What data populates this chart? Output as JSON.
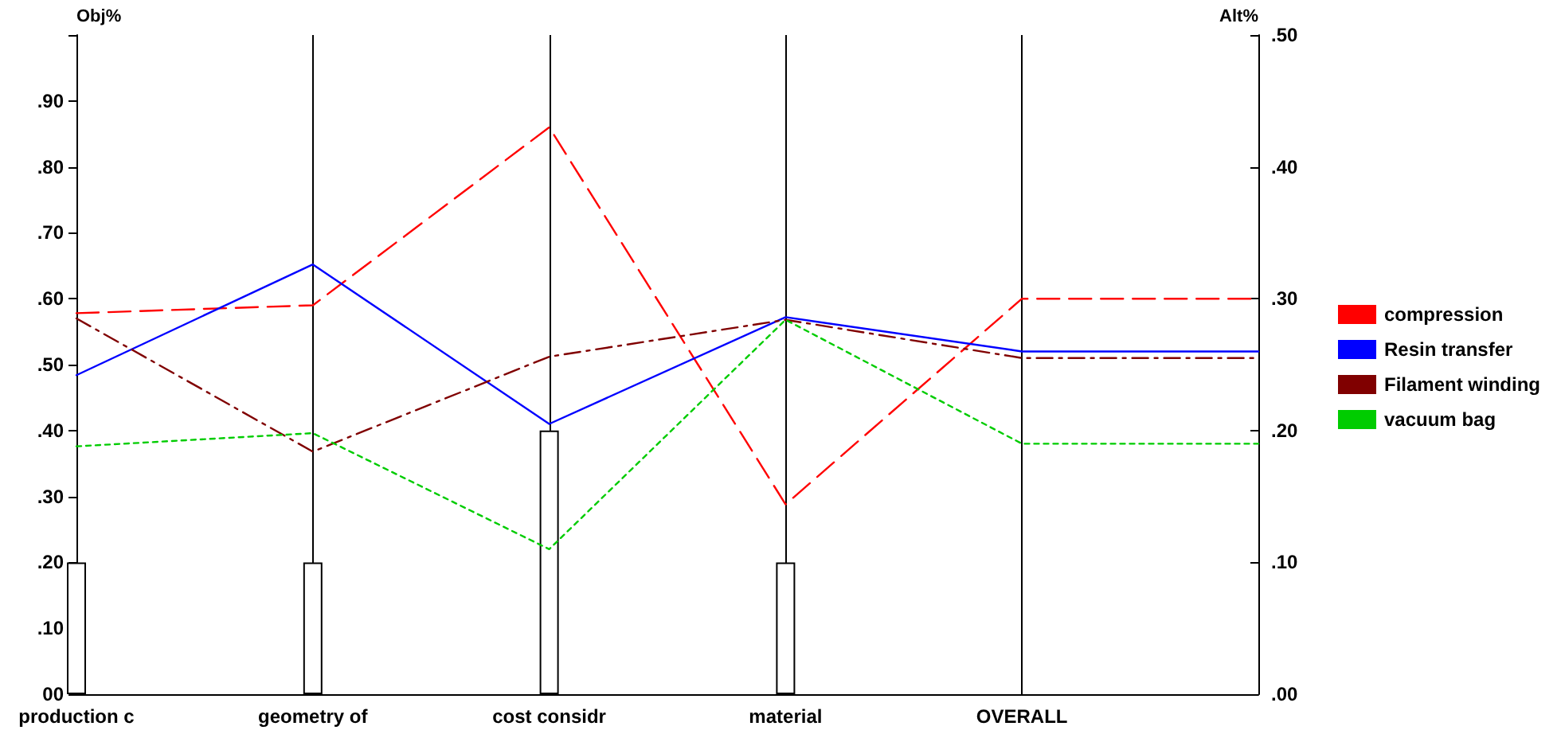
{
  "chart_data": {
    "type": "line",
    "ylabel": "Obj%",
    "y2label": "Alt%",
    "categories": [
      "production c",
      "geometry of",
      "cost considr",
      "material",
      "OVERALL",
      null
    ],
    "series": [
      {
        "type": "bar",
        "color": "#ffffff",
        "values": [
          0.2,
          0.2,
          0.4,
          0.2,
          null,
          null
        ]
      },
      {
        "name": "compression",
        "color": "#ff0000",
        "axis": "y2",
        "line_style": "dashed",
        "values": [
          0.289,
          0.295,
          0.43,
          0.144,
          0.3,
          0.3
        ]
      },
      {
        "name": "Resin transfer",
        "color": "#0000ff",
        "axis": "y2",
        "line_style": "solid",
        "values": [
          0.242,
          0.326,
          0.205,
          0.286,
          0.26,
          0.26
        ]
      },
      {
        "name": "Filament winding",
        "color": "#800000",
        "axis": "y2",
        "line_style": "dashdot",
        "values": [
          0.285,
          0.184,
          0.256,
          0.284,
          0.255,
          0.255
        ]
      },
      {
        "name": "vacuum bag",
        "color": "#00cc00",
        "axis": "y2",
        "line_style": "dotted",
        "values": [
          0.188,
          0.198,
          0.11,
          0.284,
          0.19,
          0.19
        ]
      }
    ],
    "ylim": [
      0,
      1
    ],
    "yticks": [
      {
        "value": 0,
        "label": "00"
      },
      {
        "value": 0.1,
        "label": ".10"
      },
      {
        "value": 0.2,
        "label": ".20"
      },
      {
        "value": 0.3,
        "label": ".30"
      },
      {
        "value": 0.4,
        "label": ".40"
      },
      {
        "value": 0.5,
        "label": ".50"
      },
      {
        "value": 0.6,
        "label": ".60"
      },
      {
        "value": 0.7,
        "label": ".70"
      },
      {
        "value": 0.8,
        "label": ".80"
      },
      {
        "value": 0.9,
        "label": ".90"
      },
      {
        "value": 1,
        "label": null
      }
    ],
    "y2lim": [
      0,
      0.5
    ],
    "y2ticks": [
      {
        "value": 0,
        "label": ".00"
      },
      {
        "value": 0.1,
        "label": ".10"
      },
      {
        "value": 0.2,
        "label": ".20"
      },
      {
        "value": 0.3,
        "label": ".30"
      },
      {
        "value": 0.4,
        "label": ".40"
      },
      {
        "value": 0.5,
        "label": ".50"
      }
    ],
    "grid": "x",
    "legend": "right",
    "marker": "none"
  }
}
